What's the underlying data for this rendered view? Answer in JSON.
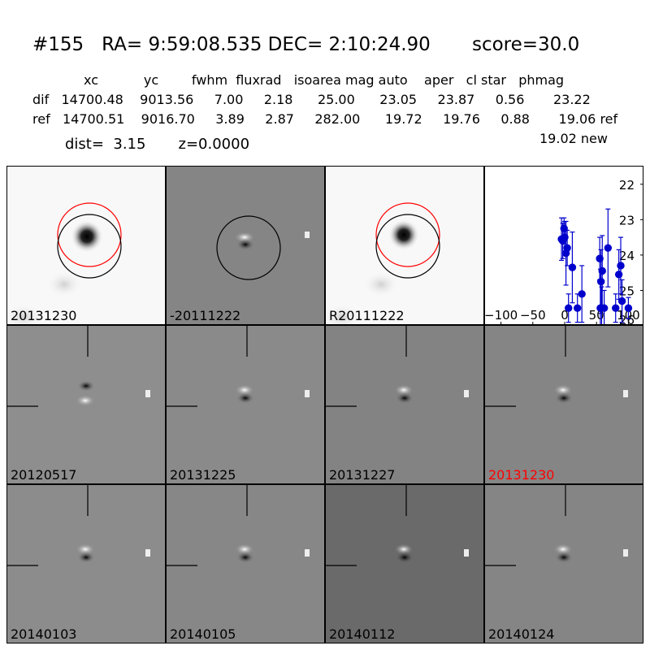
{
  "header": {
    "title": "#155   RA= 9:59:08.535 DEC= 2:10:24.90       score=30.0",
    "columns_line": "xc           yc        fwhm  fluxrad   isoarea mag auto    aper   cl star   phmag",
    "dif_line": "dif   14700.48    9013.56     7.00     2.18      25.00      23.05     23.87     0.56       23.22",
    "ref_line": "ref   14700.51    9016.70     3.89     2.87     282.00      19.72     19.76     0.88       19.06 ref",
    "new_line": "19.02 new",
    "dist_line": "dist=  3.15       z=0.0000"
  },
  "top_panels": [
    {
      "label": "20131230",
      "style": "new"
    },
    {
      "label": "-20111222",
      "style": "diff"
    },
    {
      "label": "R20111222",
      "style": "ref"
    }
  ],
  "stamps": [
    {
      "label": "20120517",
      "highlight": false,
      "bg": "#8e8e8e",
      "flip": true
    },
    {
      "label": "20131225",
      "highlight": false,
      "bg": "#8a8a8a",
      "flip": false
    },
    {
      "label": "20131227",
      "highlight": false,
      "bg": "#838383",
      "flip": false
    },
    {
      "label": "20131230",
      "highlight": true,
      "bg": "#858585",
      "flip": false
    },
    {
      "label": "20140103",
      "highlight": false,
      "bg": "#8c8c8c",
      "flip": false
    },
    {
      "label": "20140105",
      "highlight": false,
      "bg": "#878787",
      "flip": false
    },
    {
      "label": "20140112",
      "highlight": false,
      "bg": "#6a6a6a",
      "flip": false
    },
    {
      "label": "20140124",
      "highlight": false,
      "bg": "#858585",
      "flip": false
    }
  ],
  "colors": {
    "highlight": "#ff0000",
    "marker": "#0000cc",
    "circle_red": "#ff0000",
    "circle_black": "#000000"
  },
  "chart_data": {
    "type": "scatter",
    "title": "",
    "xlabel": "",
    "ylabel": "",
    "xlim": [
      -125,
      125
    ],
    "ylim": [
      26,
      21.5
    ],
    "y_inverted": true,
    "xticks": [
      -100,
      -50,
      0,
      50,
      100
    ],
    "xtick_labels": [
      "−100",
      "−50",
      "0",
      "50",
      "100"
    ],
    "yticks": [
      22,
      23,
      24,
      25,
      26
    ],
    "ytick_labels": [
      "22",
      "23",
      "24",
      "25",
      "26"
    ],
    "grid": false,
    "series": [
      {
        "x": [
          -5,
          -3,
          -1,
          0,
          2,
          4,
          6,
          12,
          20,
          27,
          55,
          56,
          57,
          58,
          59,
          62,
          68,
          80,
          85,
          88,
          90,
          100
        ],
        "y": [
          23.55,
          23.6,
          23.25,
          23.5,
          23.95,
          23.8,
          25.5,
          24.35,
          25.5,
          25.1,
          24.1,
          25.5,
          24.75,
          25.5,
          24.45,
          25.5,
          23.8,
          25.5,
          24.55,
          24.3,
          25.3,
          25.5
        ],
        "yerr": [
          0.6,
          0.5,
          0.3,
          0.45,
          0.9,
          0.5,
          0.4,
          1.0,
          0.4,
          0.8,
          0.6,
          1.1,
          0.9,
          0.6,
          1.0,
          0.5,
          1.1,
          0.4,
          0.7,
          0.8,
          0.6,
          0.3
        ]
      }
    ]
  }
}
